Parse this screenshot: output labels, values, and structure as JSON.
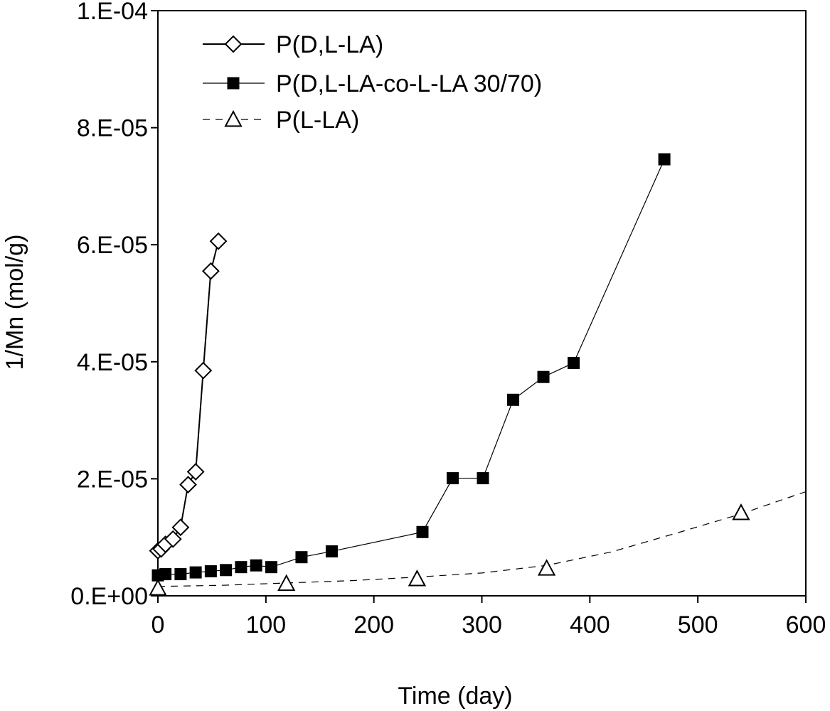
{
  "chart_data": {
    "type": "scatter",
    "xlabel": "Time (day)",
    "ylabel": "1/Mn (mol/g)",
    "xlim": [
      0,
      600
    ],
    "ylim": [
      0,
      0.0001
    ],
    "xticks": [
      0,
      100,
      200,
      300,
      400,
      500,
      600
    ],
    "xtick_labels": [
      "0",
      "100",
      "200",
      "300",
      "400",
      "500",
      "600"
    ],
    "yticks": [
      0,
      2e-05,
      4e-05,
      6e-05,
      8e-05,
      0.0001
    ],
    "ytick_labels": [
      "0.E+00",
      "2.E-05",
      "4.E-05",
      "6.E-05",
      "8.E-05",
      "1.E-04"
    ],
    "legend_position": "top-left",
    "series": [
      {
        "name": "P(D,L-LA)",
        "marker": "diamond-open",
        "line": "solid",
        "color": "#000000",
        "x": [
          0,
          3,
          7,
          14,
          21,
          28,
          35,
          42,
          49,
          56
        ],
        "y": [
          7.7e-06,
          8e-06,
          8.8e-06,
          9.7e-06,
          1.17e-05,
          1.9e-05,
          2.12e-05,
          3.85e-05,
          5.55e-05,
          6.06e-05
        ]
      },
      {
        "name": "P(D,L-LA-co-L-LA 30/70)",
        "marker": "square-filled",
        "line": "thin-solid",
        "color": "#000000",
        "x": [
          0,
          7,
          21,
          35,
          49,
          63,
          77,
          91,
          105,
          133,
          161,
          245,
          273,
          301,
          329,
          357,
          385,
          469
        ],
        "y": [
          3.5e-06,
          3.7e-06,
          3.7e-06,
          4e-06,
          4.2e-06,
          4.4e-06,
          4.9e-06,
          5.2e-06,
          4.9e-06,
          6.6e-06,
          7.6e-06,
          1.09e-05,
          2.01e-05,
          2.01e-05,
          3.35e-05,
          3.74e-05,
          3.98e-05,
          7.46e-05
        ]
      },
      {
        "name": "P(L-LA)",
        "marker": "triangle-open",
        "line": "dashed-fit",
        "color": "#000000",
        "x": [
          0,
          119,
          240,
          360,
          540
        ],
        "y": [
          1.3e-06,
          2.1e-06,
          2.9e-06,
          4.7e-06,
          1.42e-05
        ],
        "fit_x": [
          0,
          60,
          120,
          180,
          240,
          300,
          360,
          420,
          480,
          540,
          600
        ],
        "fit_y": [
          1.6e-06,
          1.8e-06,
          2.2e-06,
          2.6e-06,
          3.2e-06,
          3.9e-06,
          5.2e-06,
          7.5e-06,
          1.07e-05,
          1.4e-05,
          1.78e-05
        ]
      }
    ]
  }
}
